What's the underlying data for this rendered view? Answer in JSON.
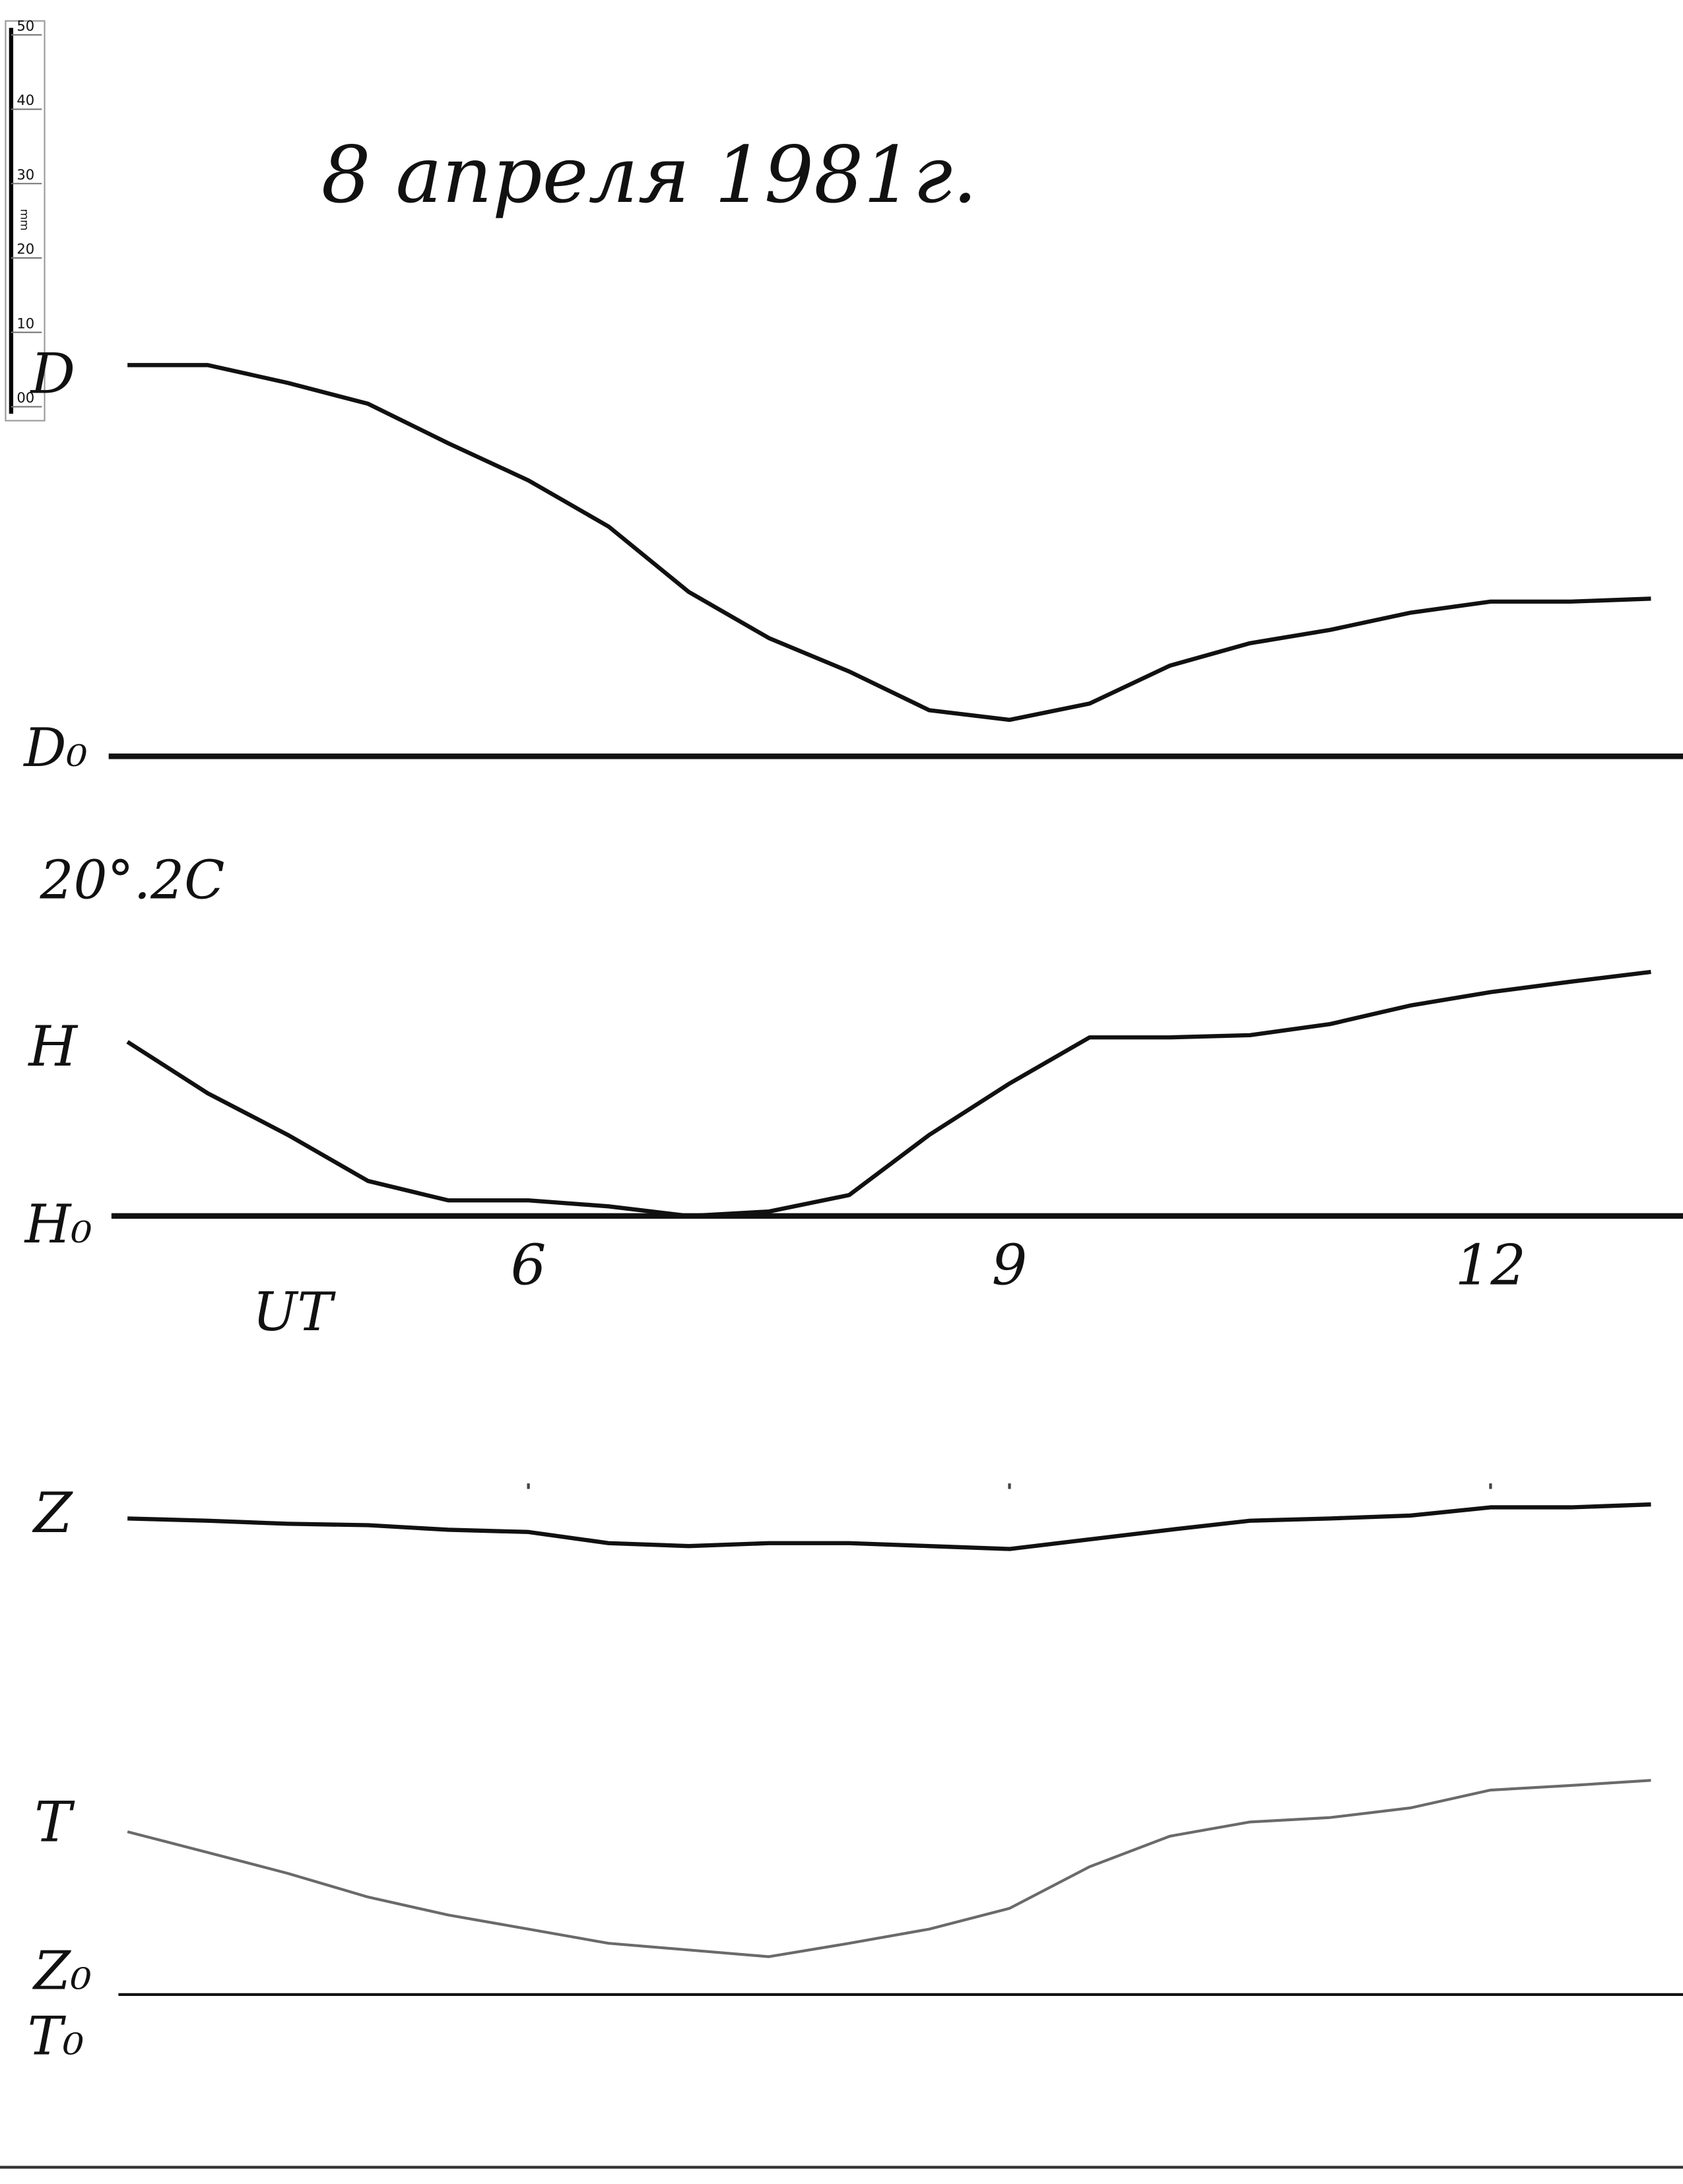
{
  "chart_data": {
    "type": "line",
    "title": "8 апреля 1981г.",
    "xlabel": "UT",
    "xlim": [
      3.4,
      13.2
    ],
    "xticks": [
      6,
      9,
      12
    ],
    "x": [
      3.5,
      4,
      4.5,
      5,
      5.5,
      6,
      6.5,
      7,
      7.5,
      8,
      8.5,
      9,
      9.5,
      10,
      10.5,
      11,
      11.5,
      12,
      12.5,
      13
    ],
    "series": [
      {
        "name": "D",
        "color": "#111111",
        "values": [
          52.6,
          52.6,
          50.2,
          47.4,
          42.1,
          37.1,
          30.9,
          22.1,
          15.9,
          11.4,
          6.2,
          4.9,
          7.1,
          12.2,
          15.2,
          17.0,
          19.3,
          20.8,
          20.8,
          21.2
        ]
      },
      {
        "name": "H",
        "color": "#111111",
        "values": [
          23.4,
          16.5,
          10.9,
          4.7,
          2.1,
          2.1,
          1.3,
          0.0,
          0.6,
          2.8,
          10.9,
          17.8,
          24.0,
          24.0,
          24.3,
          25.8,
          28.3,
          30.1,
          31.5,
          32.8
        ]
      },
      {
        "name": "Z",
        "color": "#111111",
        "values": [
          64.0,
          63.7,
          63.3,
          63.1,
          62.5,
          62.2,
          60.7,
          60.3,
          60.7,
          60.7,
          60.3,
          59.9,
          61.2,
          62.5,
          63.7,
          64.0,
          64.4,
          65.5,
          65.5,
          65.9
        ]
      },
      {
        "name": "T",
        "color": "#6a6a6a",
        "values": [
          21.9,
          19.1,
          16.3,
          13.1,
          10.7,
          8.8,
          6.9,
          6.0,
          5.1,
          6.9,
          8.8,
          11.6,
          17.2,
          21.3,
          23.2,
          23.8,
          25.1,
          27.5,
          28.1,
          28.8
        ]
      }
    ],
    "baseline_labels": [
      "D₀",
      "H₀",
      "Z₀",
      "T₀"
    ],
    "annotations": [
      "20°.2C"
    ]
  },
  "ruler": {
    "unit": "mm",
    "ylim": [
      0,
      50
    ],
    "ticks": [
      {
        "value": 0,
        "label": "00"
      },
      10,
      20,
      30,
      40,
      50
    ]
  }
}
